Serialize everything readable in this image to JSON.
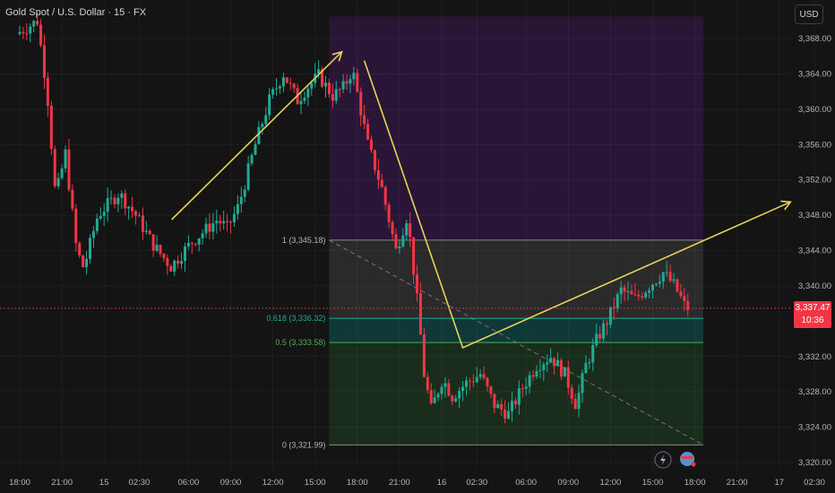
{
  "header": {
    "symbol_title": "Gold Spot / U.S. Dollar · 15 · FX",
    "currency": "USD"
  },
  "current_price": {
    "price_label": "3,337.47",
    "countdown": "10:36"
  },
  "colors": {
    "background": "#141414",
    "up_candle": "#22ab94",
    "down_candle": "#f23645",
    "arrow": "#e6d35a",
    "zone_purple": "#2a1638",
    "zone_gray": "#2b2b2b",
    "zone_teal": "#0f3b3a",
    "zone_green": "#1a2e1c"
  },
  "chart_data": {
    "type": "candlestick",
    "instrument": "Gold Spot / U.S. Dollar",
    "interval": "15",
    "ylim": [
      3318.5,
      3370.5
    ],
    "y_ticks": [
      {
        "value": 3368,
        "label": "3,368.00"
      },
      {
        "value": 3364,
        "label": "3,364.00"
      },
      {
        "value": 3360,
        "label": "3,360.00"
      },
      {
        "value": 3356,
        "label": "3,356.00"
      },
      {
        "value": 3352,
        "label": "3,352.00"
      },
      {
        "value": 3348,
        "label": "3,348.00"
      },
      {
        "value": 3344,
        "label": "3,344.00"
      },
      {
        "value": 3340,
        "label": "3,340.00"
      },
      {
        "value": 3332,
        "label": "3,332.00"
      },
      {
        "value": 3328,
        "label": "3,328.00"
      },
      {
        "value": 3324,
        "label": "3,324.00"
      },
      {
        "value": 3320,
        "label": "3,320.00"
      }
    ],
    "x_ticks": [
      {
        "t": 0,
        "label": "18:00"
      },
      {
        "t": 3,
        "label": "21:00"
      },
      {
        "t": 6,
        "label": "15"
      },
      {
        "t": 8.5,
        "label": "02:30"
      },
      {
        "t": 12,
        "label": "06:00"
      },
      {
        "t": 15,
        "label": "09:00"
      },
      {
        "t": 18,
        "label": "12:00"
      },
      {
        "t": 21,
        "label": "15:00"
      },
      {
        "t": 24,
        "label": "18:00"
      },
      {
        "t": 27,
        "label": "21:00"
      },
      {
        "t": 30,
        "label": "16"
      },
      {
        "t": 32.5,
        "label": "02:30"
      },
      {
        "t": 36,
        "label": "06:00"
      },
      {
        "t": 39,
        "label": "09:00"
      },
      {
        "t": 42,
        "label": "12:00"
      },
      {
        "t": 45,
        "label": "15:00"
      },
      {
        "t": 48,
        "label": "18:00"
      },
      {
        "t": 51,
        "label": "21:00"
      },
      {
        "t": 54,
        "label": "17"
      },
      {
        "t": 56.5,
        "label": "02:30"
      }
    ],
    "anchors": [
      {
        "t": 0.0,
        "p": 3368.5
      },
      {
        "t": 1.5,
        "p": 3370.0
      },
      {
        "t": 2.2,
        "p": 3362.0
      },
      {
        "t": 2.8,
        "p": 3350.0
      },
      {
        "t": 3.5,
        "p": 3355.0
      },
      {
        "t": 4.3,
        "p": 3344.0
      },
      {
        "t": 4.8,
        "p": 3342.0
      },
      {
        "t": 5.8,
        "p": 3348.0
      },
      {
        "t": 7.3,
        "p": 3350.5
      },
      {
        "t": 8.5,
        "p": 3348.0
      },
      {
        "t": 9.8,
        "p": 3344.5
      },
      {
        "t": 11.0,
        "p": 3342.2
      },
      {
        "t": 12.5,
        "p": 3345.0
      },
      {
        "t": 14.3,
        "p": 3347.5
      },
      {
        "t": 15.0,
        "p": 3346.5
      },
      {
        "t": 15.8,
        "p": 3349.0
      },
      {
        "t": 17.0,
        "p": 3356.0
      },
      {
        "t": 18.0,
        "p": 3361.0
      },
      {
        "t": 19.0,
        "p": 3364.0
      },
      {
        "t": 20.0,
        "p": 3361.0
      },
      {
        "t": 20.7,
        "p": 3362.5
      },
      {
        "t": 21.5,
        "p": 3363.8
      },
      {
        "t": 22.5,
        "p": 3361.5
      },
      {
        "t": 23.3,
        "p": 3362.5
      },
      {
        "t": 23.9,
        "p": 3364.5
      },
      {
        "t": 25.0,
        "p": 3356.0
      },
      {
        "t": 26.0,
        "p": 3351.0
      },
      {
        "t": 27.0,
        "p": 3344.0
      },
      {
        "t": 27.8,
        "p": 3348.0
      },
      {
        "t": 28.6,
        "p": 3337.0
      },
      {
        "t": 29.0,
        "p": 3330.0
      },
      {
        "t": 29.5,
        "p": 3326.0
      },
      {
        "t": 30.3,
        "p": 3329.5
      },
      {
        "t": 31.0,
        "p": 3327.5
      },
      {
        "t": 32.0,
        "p": 3329.0
      },
      {
        "t": 33.0,
        "p": 3330.0
      },
      {
        "t": 34.0,
        "p": 3326.5
      },
      {
        "t": 35.0,
        "p": 3325.5
      },
      {
        "t": 36.0,
        "p": 3328.5
      },
      {
        "t": 37.0,
        "p": 3331.0
      },
      {
        "t": 38.0,
        "p": 3332.0
      },
      {
        "t": 39.0,
        "p": 3330.0
      },
      {
        "t": 39.8,
        "p": 3326.5
      },
      {
        "t": 40.5,
        "p": 3331.0
      },
      {
        "t": 41.3,
        "p": 3334.0
      },
      {
        "t": 42.0,
        "p": 3336.0
      },
      {
        "t": 43.0,
        "p": 3339.5
      },
      {
        "t": 44.0,
        "p": 3338.5
      },
      {
        "t": 45.0,
        "p": 3340.0
      },
      {
        "t": 46.0,
        "p": 3341.5
      },
      {
        "t": 46.8,
        "p": 3340.0
      },
      {
        "t": 47.2,
        "p": 3338.8
      },
      {
        "t": 47.6,
        "p": 3337.5
      }
    ],
    "projection_arrows": [
      [
        {
          "t": 10.8,
          "p": 3347.5
        },
        {
          "t": 22.9,
          "p": 3366.5
        }
      ],
      [
        {
          "t": 24.5,
          "p": 3365.5
        },
        {
          "t": 31.5,
          "p": 3333.0
        },
        {
          "t": 54.8,
          "p": 3349.5
        }
      ]
    ],
    "shaded_zones": [
      {
        "name": "upper",
        "t_start": 22.0,
        "t_end": 48.6,
        "p_top": 3370.5,
        "p_bottom": 3345.18,
        "color": "#2a1638"
      },
      {
        "name": "fib-1-to-0.618",
        "t_start": 22.0,
        "t_end": 48.6,
        "p_top": 3345.18,
        "p_bottom": 3336.32,
        "color": "#2b2b2b"
      },
      {
        "name": "fib-0.618-to-0.5",
        "t_start": 22.0,
        "t_end": 48.6,
        "p_top": 3336.32,
        "p_bottom": 3333.58,
        "color": "#0f3b3a"
      },
      {
        "name": "fib-0.5-to-0",
        "t_start": 22.0,
        "t_end": 48.6,
        "p_top": 3333.58,
        "p_bottom": 3321.99,
        "color": "#1a2e1c"
      }
    ],
    "fib_levels": [
      {
        "ratio": "1",
        "price": 3345.18,
        "label": "1 (3,345.18)",
        "color": "#8a8a8a"
      },
      {
        "ratio": "0.618",
        "price": 3336.32,
        "label": "0.618 (3,336.32)",
        "color": "#22ab94"
      },
      {
        "ratio": "0.5",
        "price": 3333.58,
        "label": "0.5 (3,333.58)",
        "color": "#4caf50"
      },
      {
        "ratio": "0",
        "price": 3321.99,
        "label": "0 (3,321.99)",
        "color": "#8a8a8a"
      }
    ],
    "fib_trend": {
      "from": {
        "t": 22.0,
        "p": 3345.18
      },
      "to": {
        "t": 48.6,
        "p": 3321.99
      }
    },
    "last_price": 3337.47,
    "grid": true
  }
}
